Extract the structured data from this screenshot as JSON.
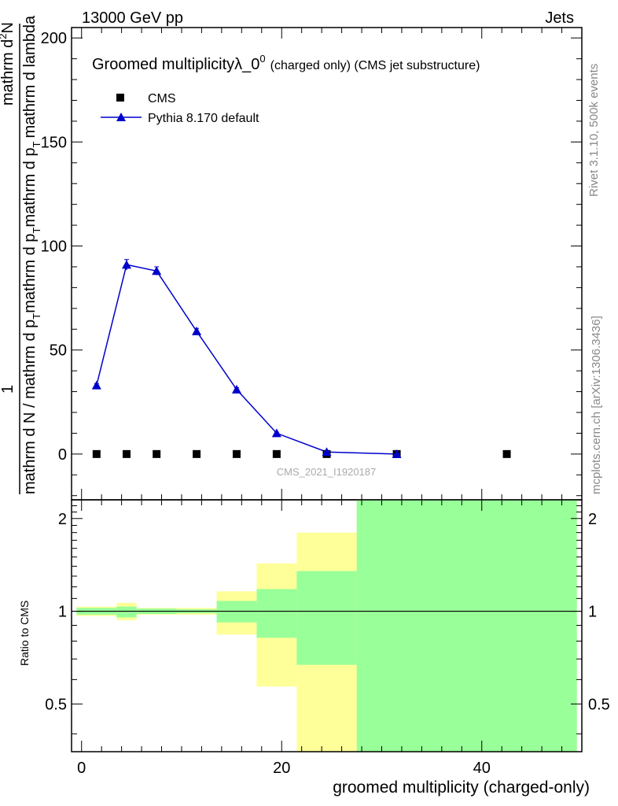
{
  "header": {
    "left": "13000 GeV pp",
    "right": "Jets",
    "rivet": "Rivet 3.1.10,  500k events",
    "mcplots": "mcplots.cern.ch [arXiv:1306.3436]"
  },
  "chart_data": [
    {
      "type": "line",
      "title": "Groomed multiplicity",
      "title_symbol": "λ_0",
      "title_superscript": "0",
      "title_suffix": "(charged only) (CMS jet substructure)",
      "ylabel": {
        "one": "1",
        "dN": "mathrm d N / mathrm d p",
        "dN_sub": "T",
        "mid": "mathrm d p",
        "mid_sub": "T",
        "mid_rest": "mathrm d p",
        "mid_rest_sub": "T",
        "top": "mathrm d",
        "top_sup": "2",
        "top_rest": "N",
        "bottom": "mathrm d lambda"
      },
      "ylim": [
        -22,
        205
      ],
      "xlim": [
        -1,
        50
      ],
      "y_ticks": [
        0,
        50,
        100,
        150,
        200
      ],
      "x_ticks": [
        0,
        20,
        40
      ],
      "watermark": "CMS_2021_I1920187",
      "legend": [
        "CMS",
        "Pythia 8.170 default"
      ],
      "series": [
        {
          "name": "CMS",
          "marker": "square",
          "color": "#000000",
          "x": [
            1.5,
            4.5,
            7.5,
            11.5,
            15.5,
            19.5,
            24.5,
            31.5,
            42.5
          ],
          "y": [
            0,
            0,
            0,
            0,
            0,
            0,
            0,
            0,
            0
          ]
        },
        {
          "name": "Pythia 8.170 default",
          "marker": "triangle",
          "color": "#0000cc",
          "x": [
            1.5,
            4.5,
            7.5,
            11.5,
            15.5,
            19.5,
            24.5,
            31.5
          ],
          "y": [
            33,
            91,
            88,
            59,
            31,
            10,
            1,
            0
          ],
          "yerr": [
            0.8,
            2.5,
            2.0,
            1.4,
            0.9,
            0.5,
            0.2,
            0.05
          ]
        }
      ]
    },
    {
      "type": "area",
      "ylabel": "Ratio to CMS",
      "xlabel": "groomed multiplicity (charged-only)",
      "xlim": [
        -1,
        50
      ],
      "ylim": [
        0.35,
        2.3
      ],
      "y_ticks": [
        0.5,
        1,
        2
      ],
      "y_tick_labels": [
        "0.5",
        "1",
        "2"
      ],
      "x_ticks": [
        0,
        20,
        40
      ],
      "reference_line": 1,
      "bands": [
        {
          "x0": -0.5,
          "x1": 3.5,
          "yellow": [
            0.965,
            1.035
          ],
          "green": [
            0.975,
            1.025
          ]
        },
        {
          "x0": 3.5,
          "x1": 5.5,
          "yellow": [
            0.935,
            1.065
          ],
          "green": [
            0.955,
            1.035
          ]
        },
        {
          "x0": 5.5,
          "x1": 9.5,
          "yellow": [
            0.975,
            1.025
          ],
          "green": [
            0.98,
            1.02
          ]
        },
        {
          "x0": 9.5,
          "x1": 13.5,
          "yellow": [
            0.975,
            1.025
          ],
          "green": [
            0.985,
            1.015
          ]
        },
        {
          "x0": 13.5,
          "x1": 17.5,
          "yellow": [
            0.84,
            1.16
          ],
          "green": [
            0.92,
            1.08
          ]
        },
        {
          "x0": 17.5,
          "x1": 21.5,
          "yellow": [
            0.57,
            1.43
          ],
          "green": [
            0.82,
            1.18
          ]
        },
        {
          "x0": 21.5,
          "x1": 27.5,
          "yellow": [
            0.0,
            1.8
          ],
          "green": [
            0.67,
            1.35
          ]
        },
        {
          "x0": 27.5,
          "x1": 49.5,
          "yellow": [
            0.0,
            3.0
          ],
          "green": [
            0.0,
            3.0
          ]
        }
      ]
    }
  ]
}
